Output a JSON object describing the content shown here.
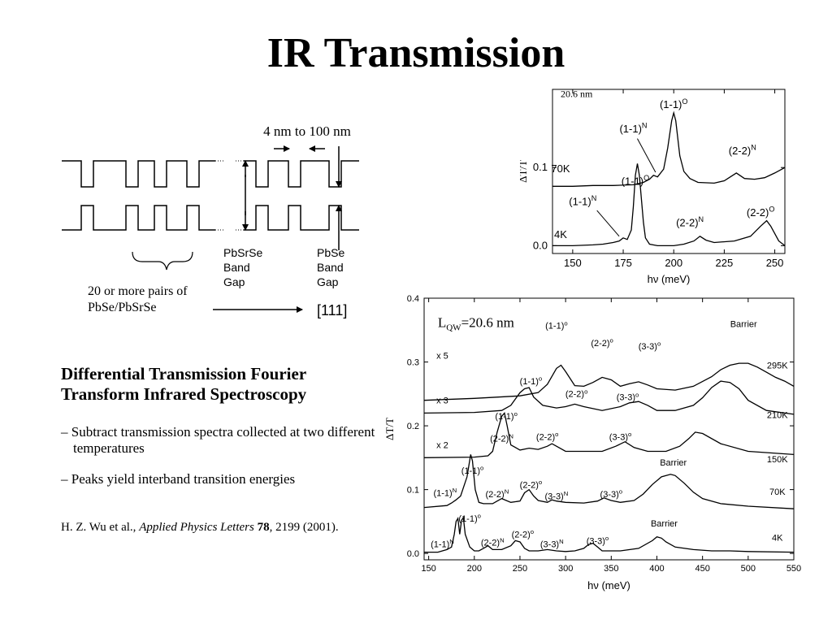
{
  "slide": {
    "title": "IR Transmission"
  },
  "diagram": {
    "period_label": "4 nm to 100 nm",
    "pairs_label_line1": "20 or more pairs of",
    "pairs_label_line2": "PbSe/PbSrSe",
    "direction_label": "[111]",
    "pbsrse_label": [
      "PbSrSe",
      "Band",
      "Gap"
    ],
    "pbse_label": [
      "PbSe",
      "Band",
      "Gap"
    ]
  },
  "text": {
    "heading_line1": "Differential Transmission Fourier",
    "heading_line2": "Transform Infrared Spectroscopy",
    "bullet1": "– Subtract transmission spectra collected at two different temperatures",
    "bullet2": "– Peaks yield interband transition energies",
    "citation_authors": "H. Z. Wu et al., ",
    "citation_journal": "Applied Physics Letters",
    "citation_volume": "78",
    "citation_rest": ", 2199 (2001)."
  },
  "chart_data": [
    {
      "type": "line",
      "annotation": "20.6 nm",
      "xlabel": "hν (meV)",
      "ylabel": "ΔT/T",
      "xlim": [
        140,
        255
      ],
      "ylim": [
        -0.01,
        0.2
      ],
      "x_ticks": [
        150,
        175,
        200,
        225,
        250
      ],
      "y_ticks": [
        0.0,
        0.1
      ],
      "y_tick_labels": [
        "0.0",
        "0.1"
      ],
      "series": [
        {
          "name": "70K",
          "x": [
            140,
            150,
            160,
            170,
            180,
            185,
            188,
            190,
            192,
            195,
            197,
            199,
            200,
            201,
            203,
            205,
            208,
            212,
            220,
            225,
            228,
            231,
            235,
            240,
            245,
            250,
            255
          ],
          "y": [
            0.076,
            0.076,
            0.077,
            0.077,
            0.078,
            0.081,
            0.085,
            0.09,
            0.088,
            0.098,
            0.125,
            0.16,
            0.17,
            0.16,
            0.115,
            0.095,
            0.086,
            0.081,
            0.08,
            0.083,
            0.088,
            0.093,
            0.086,
            0.085,
            0.087,
            0.093,
            0.1
          ]
        },
        {
          "name": "4K",
          "x": [
            140,
            150,
            160,
            165,
            170,
            173,
            175,
            177,
            179,
            180,
            181,
            182,
            183,
            184,
            185,
            186,
            188,
            192,
            200,
            205,
            210,
            213,
            216,
            220,
            230,
            238,
            243,
            246,
            248,
            252,
            255
          ],
          "y": [
            0.0,
            0.0,
            0.001,
            0.002,
            0.004,
            0.006,
            0.01,
            0.008,
            0.02,
            0.05,
            0.09,
            0.105,
            0.09,
            0.06,
            0.03,
            0.01,
            0.002,
            0.0,
            0.0,
            0.002,
            0.006,
            0.012,
            0.007,
            0.004,
            0.006,
            0.012,
            0.025,
            0.032,
            0.025,
            0.006,
            0.0
          ]
        }
      ],
      "peak_labels": [
        {
          "text": "(1-1)",
          "sup": "O",
          "x": 200,
          "y": 0.176
        },
        {
          "text": "(1-1)",
          "sup": "N",
          "x": 180,
          "y": 0.145
        },
        {
          "text": "(2-2)",
          "sup": "N",
          "x": 234,
          "y": 0.117
        },
        {
          "text": "70K",
          "sup": "",
          "x": 144,
          "y": 0.094
        },
        {
          "text": "(1-1)",
          "sup": "O",
          "x": 181,
          "y": 0.078
        },
        {
          "text": "(1-1)",
          "sup": "N",
          "x": 155,
          "y": 0.052
        },
        {
          "text": "(2-2)",
          "sup": "N",
          "x": 208,
          "y": 0.025
        },
        {
          "text": "(2-2)",
          "sup": "O",
          "x": 243,
          "y": 0.038
        },
        {
          "text": "4K",
          "sup": "",
          "x": 144,
          "y": 0.01
        }
      ]
    },
    {
      "type": "line",
      "annotation": "L_QW=20.6 nm",
      "xlabel": "hν (meV)",
      "ylabel": "ΔT/T",
      "xlim": [
        145,
        550
      ],
      "ylim": [
        -0.01,
        0.4
      ],
      "x_ticks": [
        150,
        200,
        250,
        300,
        350,
        400,
        450,
        500,
        550
      ],
      "y_ticks": [
        0.0,
        0.1,
        0.2,
        0.3,
        0.4
      ],
      "y_tick_labels": [
        "0.0",
        "0.1",
        "0.2",
        "0.3",
        "0.4"
      ],
      "series": [
        {
          "name": "295K",
          "scale_label": "x 5",
          "x": [
            145,
            200,
            250,
            270,
            280,
            290,
            295,
            300,
            310,
            320,
            330,
            340,
            350,
            360,
            370,
            380,
            390,
            400,
            420,
            440,
            460,
            470,
            480,
            490,
            500,
            510,
            520,
            530,
            540,
            550
          ],
          "y": [
            0.24,
            0.243,
            0.247,
            0.252,
            0.265,
            0.29,
            0.295,
            0.285,
            0.263,
            0.262,
            0.268,
            0.276,
            0.272,
            0.262,
            0.266,
            0.269,
            0.264,
            0.258,
            0.256,
            0.262,
            0.277,
            0.288,
            0.295,
            0.298,
            0.298,
            0.292,
            0.284,
            0.276,
            0.27,
            0.262
          ]
        },
        {
          "name": "210K",
          "scale_label": "x 3",
          "x": [
            145,
            200,
            230,
            240,
            250,
            255,
            260,
            265,
            275,
            290,
            300,
            310,
            320,
            340,
            360,
            370,
            380,
            390,
            400,
            420,
            440,
            450,
            460,
            470,
            480,
            490,
            500,
            520,
            550
          ],
          "y": [
            0.22,
            0.221,
            0.224,
            0.232,
            0.252,
            0.258,
            0.26,
            0.245,
            0.232,
            0.228,
            0.23,
            0.234,
            0.23,
            0.224,
            0.23,
            0.236,
            0.238,
            0.232,
            0.224,
            0.224,
            0.232,
            0.244,
            0.26,
            0.27,
            0.268,
            0.258,
            0.24,
            0.224,
            0.218
          ]
        },
        {
          "name": "150K",
          "scale_label": "x 2",
          "x": [
            145,
            200,
            215,
            220,
            225,
            230,
            233,
            236,
            240,
            250,
            260,
            270,
            280,
            285,
            290,
            300,
            320,
            340,
            355,
            365,
            375,
            390,
            410,
            425,
            435,
            442,
            450,
            470,
            500,
            550
          ],
          "y": [
            0.15,
            0.151,
            0.153,
            0.16,
            0.19,
            0.215,
            0.22,
            0.2,
            0.17,
            0.162,
            0.165,
            0.163,
            0.168,
            0.172,
            0.168,
            0.16,
            0.16,
            0.16,
            0.168,
            0.175,
            0.166,
            0.16,
            0.16,
            0.168,
            0.18,
            0.19,
            0.188,
            0.172,
            0.16,
            0.155
          ]
        },
        {
          "name": "70K",
          "scale_label": "",
          "x": [
            145,
            170,
            175,
            180,
            185,
            192,
            196,
            198,
            201,
            205,
            210,
            220,
            225,
            230,
            240,
            250,
            255,
            260,
            265,
            270,
            280,
            285,
            290,
            300,
            320,
            335,
            342,
            350,
            360,
            375,
            385,
            395,
            405,
            415,
            420,
            430,
            440,
            450,
            470,
            500,
            550
          ],
          "y": [
            0.072,
            0.075,
            0.079,
            0.084,
            0.09,
            0.12,
            0.155,
            0.145,
            0.1,
            0.08,
            0.078,
            0.078,
            0.082,
            0.086,
            0.08,
            0.082,
            0.095,
            0.1,
            0.09,
            0.083,
            0.08,
            0.084,
            0.082,
            0.08,
            0.079,
            0.082,
            0.087,
            0.083,
            0.08,
            0.083,
            0.093,
            0.108,
            0.12,
            0.124,
            0.122,
            0.11,
            0.096,
            0.086,
            0.078,
            0.074,
            0.07
          ]
        },
        {
          "name": "4K",
          "scale_label": "",
          "x": [
            145,
            160,
            170,
            175,
            178,
            180,
            182,
            184,
            186,
            188,
            190,
            195,
            200,
            205,
            210,
            215,
            220,
            230,
            240,
            245,
            250,
            255,
            260,
            270,
            280,
            290,
            300,
            310,
            320,
            325,
            330,
            335,
            340,
            360,
            380,
            395,
            400,
            405,
            410,
            420,
            440,
            460,
            480,
            500,
            550
          ],
          "y": [
            0.002,
            0.002,
            0.006,
            0.01,
            0.03,
            0.05,
            0.055,
            0.03,
            0.052,
            0.056,
            0.03,
            0.01,
            0.004,
            0.004,
            0.008,
            0.012,
            0.006,
            0.006,
            0.012,
            0.02,
            0.018,
            0.008,
            0.004,
            0.004,
            0.006,
            0.004,
            0.003,
            0.004,
            0.008,
            0.014,
            0.016,
            0.01,
            0.004,
            0.004,
            0.008,
            0.02,
            0.026,
            0.024,
            0.018,
            0.01,
            0.006,
            0.004,
            0.004,
            0.003,
            0.002
          ]
        }
      ],
      "peak_labels": [
        {
          "text": "(1-1)",
          "sup": "o",
          "x": 290,
          "y": 0.352
        },
        {
          "text": "(2-2)",
          "sup": "o",
          "x": 340,
          "y": 0.325
        },
        {
          "text": "(3-3)",
          "sup": "o",
          "x": 392,
          "y": 0.32
        },
        {
          "text": "Barrier",
          "sup": "",
          "x": 495,
          "y": 0.355
        },
        {
          "text": "(1-1)",
          "sup": "o",
          "x": 262,
          "y": 0.265
        },
        {
          "text": "(2-2)",
          "sup": "o",
          "x": 312,
          "y": 0.245
        },
        {
          "text": "(3-3)",
          "sup": "o",
          "x": 368,
          "y": 0.24
        },
        {
          "text": "(1-1)",
          "sup": "o",
          "x": 235,
          "y": 0.21
        },
        {
          "text": "(2-2)",
          "sup": "N",
          "x": 230,
          "y": 0.175
        },
        {
          "text": "(2-2)",
          "sup": "o",
          "x": 280,
          "y": 0.178
        },
        {
          "text": "(3-3)",
          "sup": "o",
          "x": 360,
          "y": 0.178
        },
        {
          "text": "(1-1)",
          "sup": "o",
          "x": 198,
          "y": 0.125
        },
        {
          "text": "(1-1)",
          "sup": "N",
          "x": 168,
          "y": 0.09
        },
        {
          "text": "(2-2)",
          "sup": "N",
          "x": 225,
          "y": 0.088
        },
        {
          "text": "(2-2)",
          "sup": "o",
          "x": 262,
          "y": 0.103
        },
        {
          "text": "(3-3)",
          "sup": "N",
          "x": 290,
          "y": 0.085
        },
        {
          "text": "(3-3)",
          "sup": "o",
          "x": 350,
          "y": 0.088
        },
        {
          "text": "Barrier",
          "sup": "",
          "x": 418,
          "y": 0.138
        },
        {
          "text": "(1-1)",
          "sup": "o",
          "x": 195,
          "y": 0.05
        },
        {
          "text": "(1-1)",
          "sup": "N",
          "x": 165,
          "y": 0.01
        },
        {
          "text": "(2-2)",
          "sup": "N",
          "x": 220,
          "y": 0.012
        },
        {
          "text": "(2-2)",
          "sup": "o",
          "x": 253,
          "y": 0.025
        },
        {
          "text": "(3-3)",
          "sup": "N",
          "x": 285,
          "y": 0.01
        },
        {
          "text": "(3-3)",
          "sup": "o",
          "x": 335,
          "y": 0.015
        },
        {
          "text": "Barrier",
          "sup": "",
          "x": 408,
          "y": 0.042
        }
      ],
      "curve_labels": [
        {
          "text": "x 5",
          "x": 165,
          "y": 0.305
        },
        {
          "text": "295K",
          "x": 532,
          "y": 0.29
        },
        {
          "text": "x 3",
          "x": 165,
          "y": 0.235
        },
        {
          "text": "210K",
          "x": 532,
          "y": 0.212
        },
        {
          "text": "x 2",
          "x": 165,
          "y": 0.165
        },
        {
          "text": "150K",
          "x": 532,
          "y": 0.143
        },
        {
          "text": "70K",
          "x": 532,
          "y": 0.092
        },
        {
          "text": "4K",
          "x": 532,
          "y": 0.02
        }
      ]
    }
  ]
}
